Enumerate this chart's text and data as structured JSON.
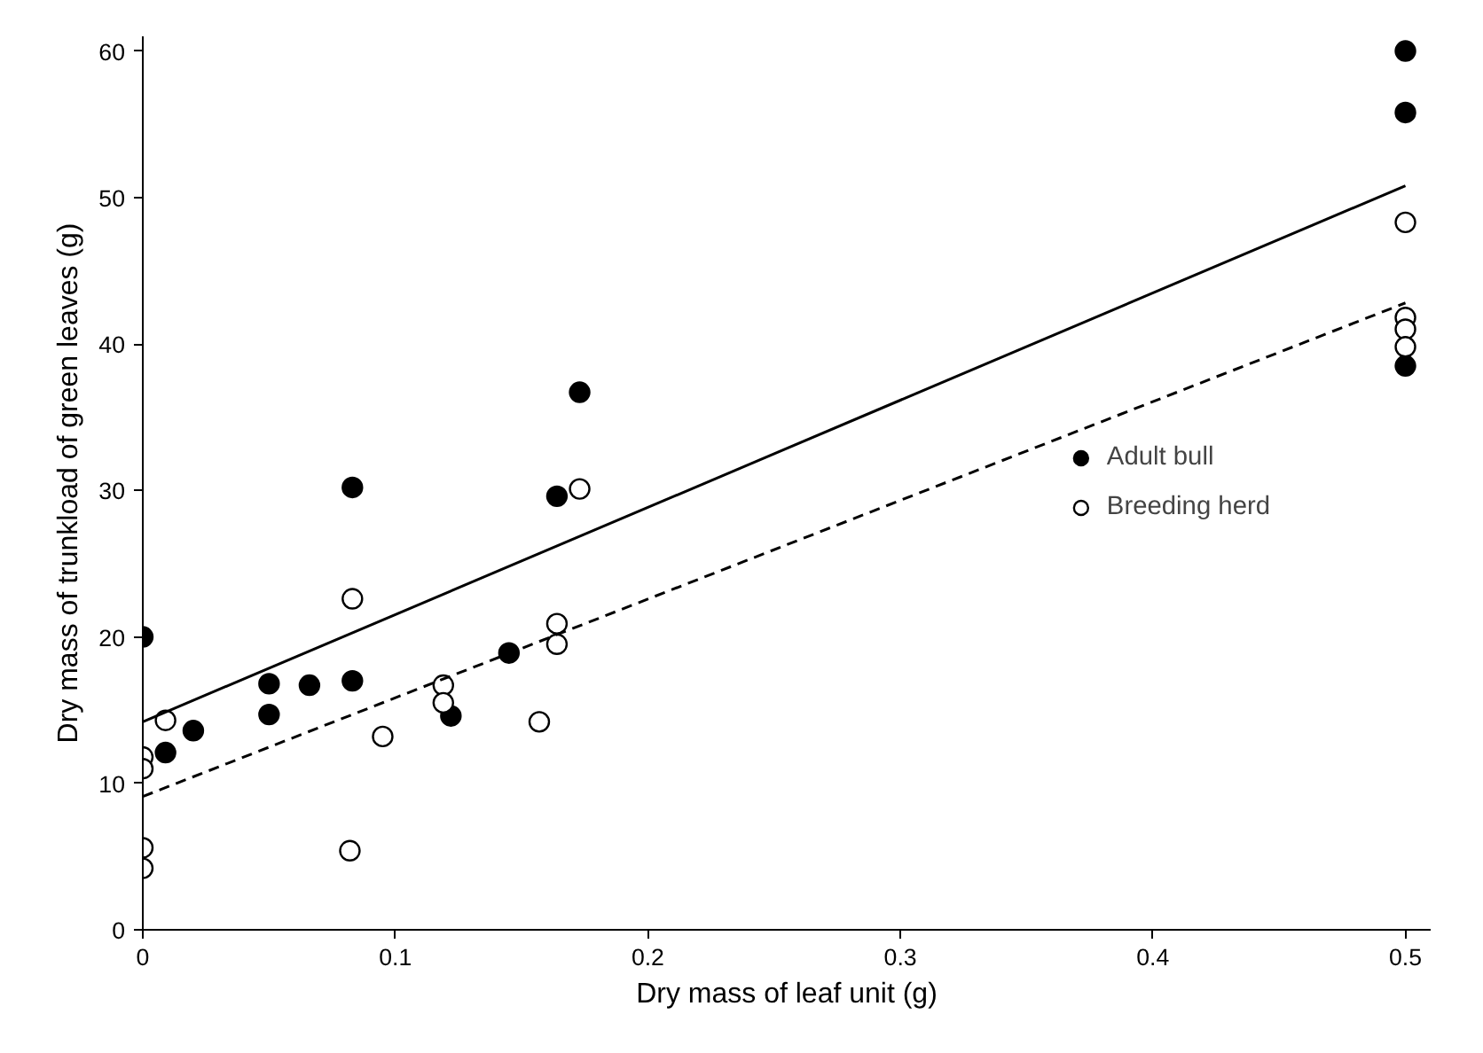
{
  "chart_data": {
    "type": "scatter",
    "xlabel": "Dry mass of leaf unit (g)",
    "ylabel": "Dry mass of trunkload of green leaves (g)",
    "xlim": [
      0,
      0.51
    ],
    "ylim": [
      0,
      61
    ],
    "xticks": [
      0,
      0.1,
      0.2,
      0.3,
      0.4,
      0.5
    ],
    "yticks": [
      0,
      10,
      20,
      30,
      40,
      50,
      60
    ],
    "grid": false,
    "legend": "right",
    "series": [
      {
        "name": "Adult bull",
        "color": "#000000",
        "marker": "circle",
        "x": [
          0,
          0.009,
          0.02,
          0.05,
          0.05,
          0.066,
          0.083,
          0.083,
          0.122,
          0.145,
          0.164,
          0.173,
          0.5,
          0.5,
          0.5
        ],
        "values": [
          20,
          12.1,
          13.6,
          14.7,
          16.8,
          16.7,
          17.0,
          30.2,
          14.6,
          18.9,
          29.6,
          36.7,
          60,
          55.8,
          38.5
        ]
      },
      {
        "name": "Breeding herd",
        "color": "#ffffff",
        "marker": "circle",
        "x": [
          0,
          0,
          0,
          0,
          0.009,
          0.082,
          0.083,
          0.095,
          0.119,
          0.119,
          0.157,
          0.164,
          0.164,
          0.173,
          0.5,
          0.5,
          0.5,
          0.5
        ],
        "values": [
          11.8,
          11.0,
          5.6,
          4.2,
          14.3,
          5.4,
          22.6,
          13.2,
          16.7,
          15.5,
          14.2,
          20.9,
          19.5,
          30.1,
          48.3,
          41.8,
          41.0,
          39.8
        ]
      },
      {
        "type": "line",
        "color": "#000000",
        "line_style": "solid",
        "x": [
          0,
          0.5
        ],
        "values": [
          14.2,
          50.8
        ]
      },
      {
        "type": "line",
        "color": "#000000",
        "line_style": "dashed",
        "x": [
          0,
          0.5
        ],
        "values": [
          9.1,
          42.8
        ]
      }
    ]
  }
}
